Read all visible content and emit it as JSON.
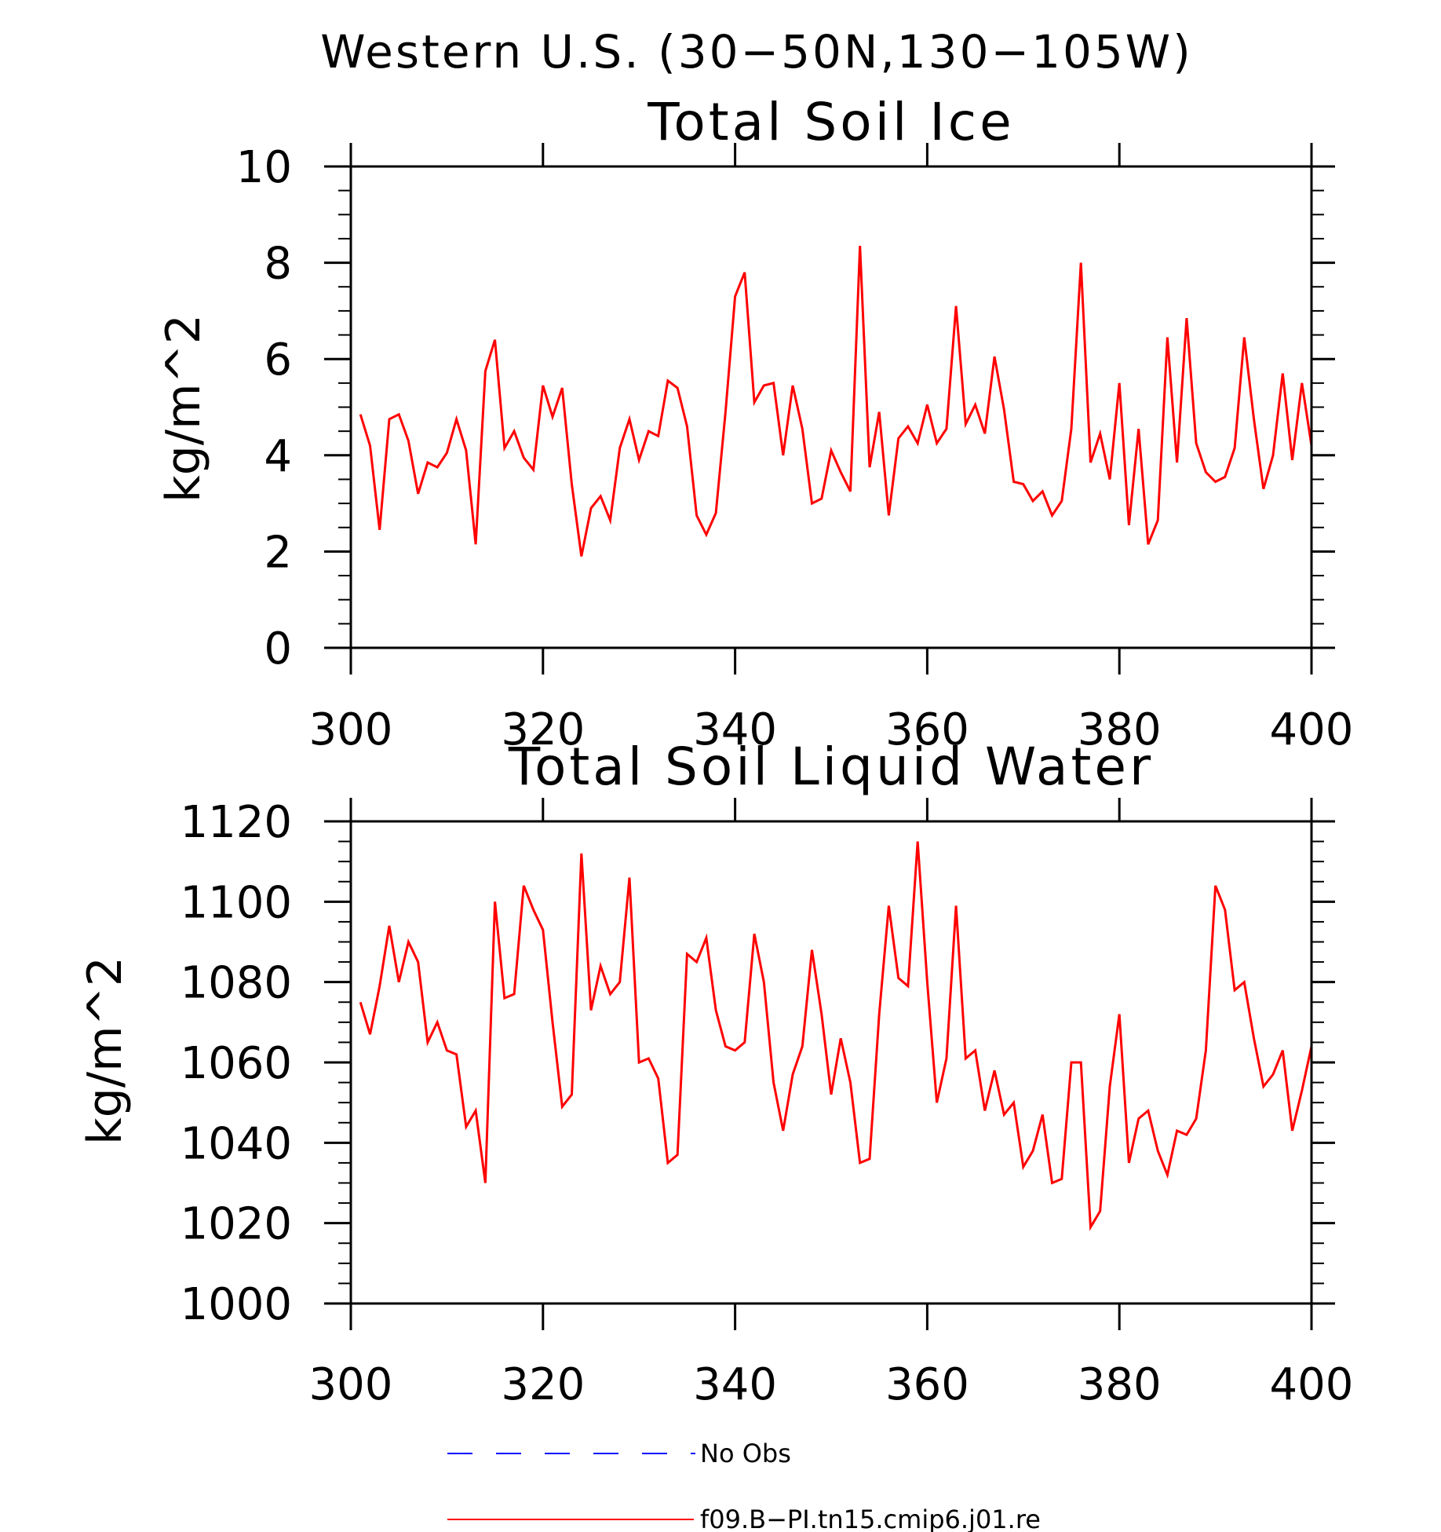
{
  "figure": {
    "title": "Western U.S. (30−50N,130−105W)"
  },
  "chart_data": [
    {
      "type": "line",
      "title": "Total Soil Ice",
      "xlabel": "",
      "ylabel": "kg/m^2",
      "xlim": [
        300,
        400
      ],
      "ylim": [
        0,
        10
      ],
      "xticks": [
        300,
        320,
        340,
        360,
        380,
        400
      ],
      "yticks": [
        0,
        2,
        4,
        6,
        8,
        10
      ],
      "grid": false,
      "series": [
        {
          "name": "f09.B−PI.tn15.cmip6.j01.re",
          "color": "#ff0000",
          "x": [
            301,
            302,
            303,
            304,
            305,
            306,
            307,
            308,
            309,
            310,
            311,
            312,
            313,
            314,
            315,
            316,
            317,
            318,
            319,
            320,
            321,
            322,
            323,
            324,
            325,
            326,
            327,
            328,
            329,
            330,
            331,
            332,
            333,
            334,
            335,
            336,
            337,
            338,
            339,
            340,
            341,
            342,
            343,
            344,
            345,
            346,
            347,
            348,
            349,
            350,
            351,
            352,
            353,
            354,
            355,
            356,
            357,
            358,
            359,
            360,
            361,
            362,
            363,
            364,
            365,
            366,
            367,
            368,
            369,
            370,
            371,
            372,
            373,
            374,
            375,
            376,
            377,
            378,
            379,
            380,
            381,
            382,
            383,
            384,
            385,
            386,
            387,
            388,
            389,
            390,
            391,
            392,
            393,
            394,
            395,
            396,
            397,
            398,
            399,
            400
          ],
          "y": [
            4.85,
            4.2,
            2.45,
            4.75,
            4.85,
            4.3,
            3.2,
            3.85,
            3.75,
            4.05,
            4.75,
            4.1,
            2.15,
            5.75,
            6.4,
            4.15,
            4.5,
            3.95,
            3.7,
            5.45,
            4.8,
            5.4,
            3.4,
            1.9,
            2.9,
            3.15,
            2.65,
            4.15,
            4.75,
            3.9,
            4.5,
            4.4,
            5.55,
            5.4,
            4.6,
            2.75,
            2.35,
            2.8,
            4.9,
            7.3,
            7.8,
            5.1,
            5.45,
            5.5,
            4.0,
            5.45,
            4.55,
            3.0,
            3.1,
            4.1,
            3.65,
            3.25,
            8.35,
            3.75,
            4.9,
            2.75,
            4.35,
            4.6,
            4.25,
            5.05,
            4.25,
            4.55,
            7.1,
            4.65,
            5.05,
            4.45,
            6.05,
            4.95,
            3.45,
            3.4,
            3.05,
            3.25,
            2.75,
            3.05,
            4.55,
            8.0,
            3.85,
            4.45,
            3.5,
            5.5,
            2.55,
            4.55,
            2.15,
            2.65,
            6.45,
            3.85,
            6.85,
            4.25,
            3.65,
            3.45,
            3.55,
            4.15,
            6.45,
            4.75,
            3.3,
            4.0,
            5.7,
            3.9,
            5.5,
            4.2
          ]
        }
      ]
    },
    {
      "type": "line",
      "title": "Total Soil Liquid Water",
      "xlabel": "",
      "ylabel": "kg/m^2",
      "xlim": [
        300,
        400
      ],
      "ylim": [
        1000,
        1120
      ],
      "xticks": [
        300,
        320,
        340,
        360,
        380,
        400
      ],
      "yticks": [
        1000,
        1020,
        1040,
        1060,
        1080,
        1100,
        1120
      ],
      "grid": false,
      "series": [
        {
          "name": "f09.B−PI.tn15.cmip6.j01.re",
          "color": "#ff0000",
          "x": [
            301,
            302,
            303,
            304,
            305,
            306,
            307,
            308,
            309,
            310,
            311,
            312,
            313,
            314,
            315,
            316,
            317,
            318,
            319,
            320,
            321,
            322,
            323,
            324,
            325,
            326,
            327,
            328,
            329,
            330,
            331,
            332,
            333,
            334,
            335,
            336,
            337,
            338,
            339,
            340,
            341,
            342,
            343,
            344,
            345,
            346,
            347,
            348,
            349,
            350,
            351,
            352,
            353,
            354,
            355,
            356,
            357,
            358,
            359,
            360,
            361,
            362,
            363,
            364,
            365,
            366,
            367,
            368,
            369,
            370,
            371,
            372,
            373,
            374,
            375,
            376,
            377,
            378,
            379,
            380,
            381,
            382,
            383,
            384,
            385,
            386,
            387,
            388,
            389,
            390,
            391,
            392,
            393,
            394,
            395,
            396,
            397,
            398,
            399,
            400
          ],
          "y": [
            1075,
            1067,
            1079,
            1094,
            1080,
            1090,
            1085,
            1065,
            1070,
            1063,
            1062,
            1044,
            1048,
            1030,
            1100,
            1076,
            1077,
            1104,
            1098,
            1093,
            1070,
            1049,
            1052,
            1112,
            1073,
            1084,
            1077,
            1080,
            1106,
            1060,
            1061,
            1056,
            1035,
            1037,
            1087,
            1085,
            1091,
            1073,
            1064,
            1063,
            1065,
            1092,
            1080,
            1055,
            1043,
            1057,
            1064,
            1088,
            1072,
            1052,
            1066,
            1055,
            1035,
            1036,
            1072,
            1099,
            1081,
            1079,
            1115,
            1080,
            1050,
            1061,
            1099,
            1061,
            1063,
            1048,
            1058,
            1047,
            1050,
            1034,
            1038,
            1047,
            1030,
            1031,
            1060,
            1060,
            1019,
            1023,
            1054,
            1072,
            1035,
            1046,
            1048,
            1038,
            1032,
            1043,
            1042,
            1046,
            1063,
            1104,
            1098,
            1078,
            1080,
            1066,
            1054,
            1057,
            1063,
            1043,
            1053,
            1064
          ]
        }
      ]
    }
  ],
  "legend": {
    "items": [
      {
        "label": "No Obs",
        "color": "#0000ff",
        "style": "dashed"
      },
      {
        "label": "f09.B−PI.tn15.cmip6.j01.re",
        "color": "#ff0000",
        "style": "solid"
      }
    ]
  }
}
